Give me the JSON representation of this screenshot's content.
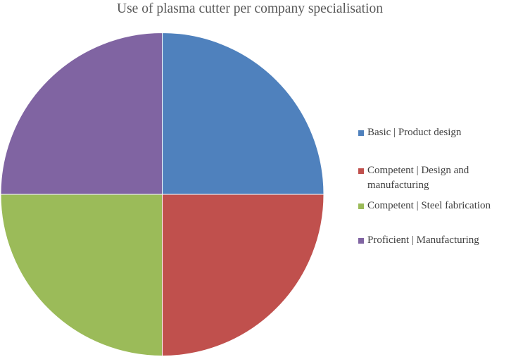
{
  "chart_data": {
    "type": "pie",
    "title": "Use of plasma cutter per company specialisation",
    "categories": [
      "Basic | Product design",
      "Competent | Design and manufacturing",
      "Competent | Steel fabrication",
      "Proficient | Manufacturing"
    ],
    "values": [
      1,
      1,
      1,
      1
    ],
    "colors": [
      "#4f81bd",
      "#c0504d",
      "#9bbb59",
      "#8064a2"
    ],
    "legend_position": "right",
    "start": "top",
    "direction": "clockwise"
  }
}
